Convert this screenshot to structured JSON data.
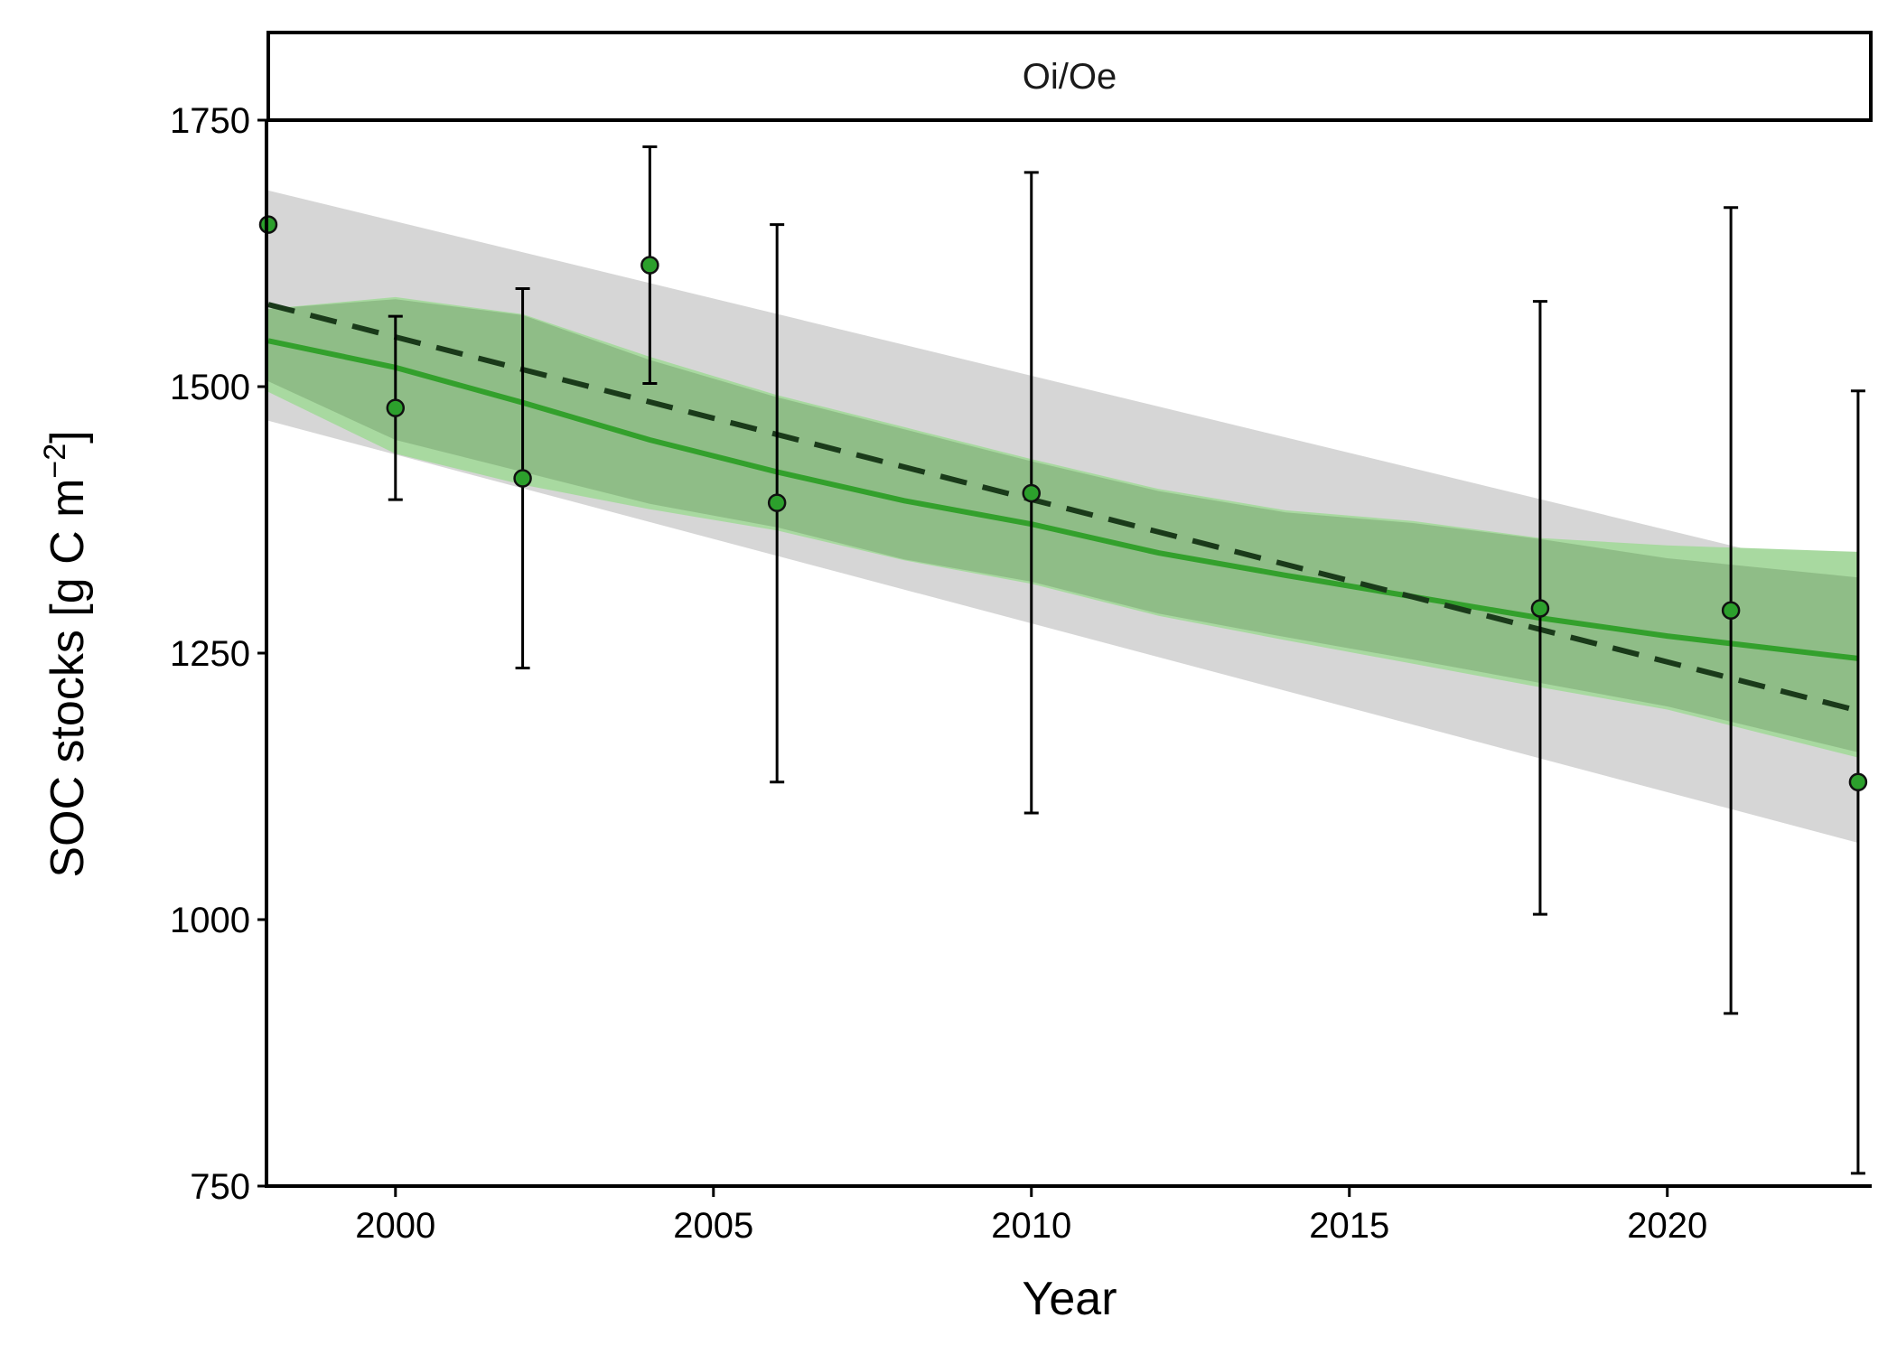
{
  "chart_data": {
    "type": "line",
    "facet_label": "Oi/Oe",
    "xlabel": "Year",
    "ylabel_main": "SOC stocks [g C m",
    "ylabel_sup": "−2",
    "ylabel_end": "]",
    "xlim": [
      1998,
      2023.2
    ],
    "ylim": [
      750,
      1750
    ],
    "x_ticks": [
      2000,
      2005,
      2010,
      2015,
      2020
    ],
    "x_tick_labels": [
      "2000",
      "2005",
      "2010",
      "2015",
      "2020"
    ],
    "y_ticks": [
      750,
      1000,
      1250,
      1500,
      1750
    ],
    "y_tick_labels": [
      "750",
      "1000",
      "1250",
      "1500",
      "1750"
    ],
    "grid": false,
    "colors": {
      "points": "#2ca02c",
      "smooth_line": "#33a02c",
      "smooth_band_inner": "#8fbd87",
      "smooth_band_outer": "#a8d9a0",
      "linear_line": "#1a3a1a",
      "linear_band": "#d6d6d6",
      "error_bars": "#000000"
    },
    "observations": [
      {
        "x": 1998,
        "y": 1652,
        "ymin": null,
        "ymax": null
      },
      {
        "x": 2000,
        "y": 1480,
        "ymin": 1394,
        "ymax": 1566
      },
      {
        "x": 2002,
        "y": 1414,
        "ymin": 1236,
        "ymax": 1592
      },
      {
        "x": 2004,
        "y": 1614,
        "ymin": 1503,
        "ymax": 1725
      },
      {
        "x": 2006,
        "y": 1391,
        "ymin": 1129,
        "ymax": 1652
      },
      {
        "x": 2010,
        "y": 1400,
        "ymin": 1100,
        "ymax": 1701
      },
      {
        "x": 2018,
        "y": 1292,
        "ymin": 1005,
        "ymax": 1580
      },
      {
        "x": 2021,
        "y": 1290,
        "ymin": 912,
        "ymax": 1668
      },
      {
        "x": 2023,
        "y": 1129,
        "ymin": 762,
        "ymax": 1496
      }
    ],
    "linear_trend": {
      "x": [
        1998,
        2023
      ],
      "y": [
        1577,
        1196
      ],
      "band_lower": [
        1468,
        1072
      ],
      "band_upper": [
        1684,
        1322
      ]
    },
    "smooth_trend": {
      "x": [
        1998,
        2000,
        2002,
        2004,
        2006,
        2008,
        2010,
        2012,
        2014,
        2016,
        2018,
        2020,
        2023
      ],
      "y": [
        1543,
        1518,
        1485,
        1450,
        1420,
        1393,
        1371,
        1344,
        1323,
        1303,
        1283,
        1266,
        1245
      ],
      "outer_lower": [
        1495,
        1437,
        1408,
        1385,
        1365,
        1337,
        1315,
        1285,
        1262,
        1240,
        1218,
        1197,
        1152
      ],
      "outer_upper": [
        1573,
        1584,
        1568,
        1528,
        1492,
        1462,
        1432,
        1404,
        1384,
        1374,
        1358,
        1351,
        1345
      ],
      "inner_lower": [
        1505,
        1450,
        1420,
        1390,
        1368,
        1338,
        1317,
        1287,
        1265,
        1244,
        1222,
        1200,
        1157
      ],
      "inner_upper": [
        1573,
        1582,
        1567,
        1525,
        1490,
        1460,
        1430,
        1402,
        1382,
        1372,
        1357,
        1339,
        1321
      ]
    }
  }
}
